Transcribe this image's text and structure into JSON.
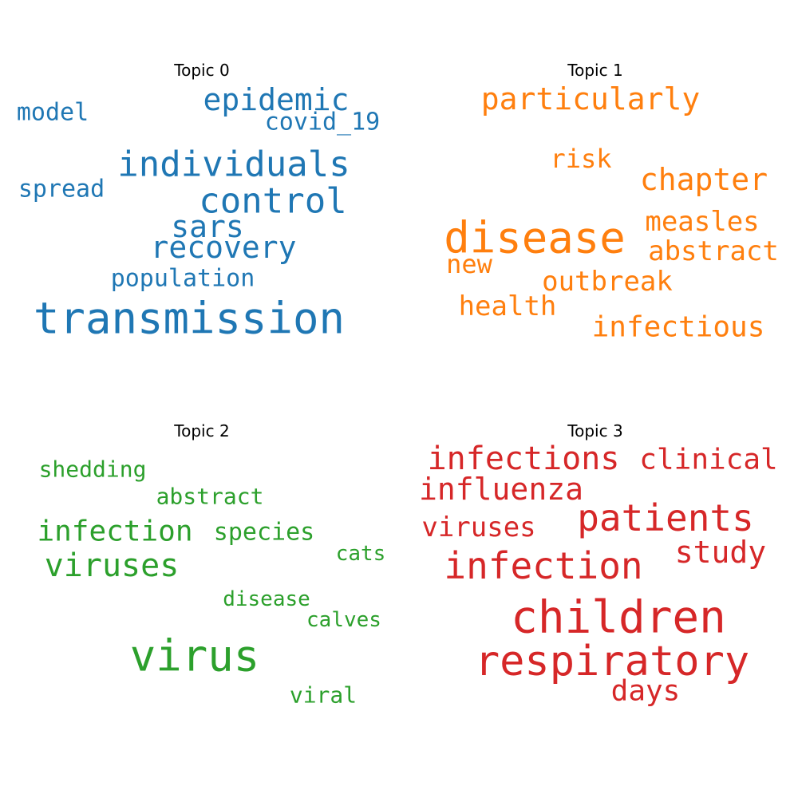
{
  "chart_data": [
    {
      "type": "wordcloud",
      "title": "Topic 0",
      "color": "#1f77b4",
      "words": [
        {
          "text": "transmission",
          "weight": 1.0
        },
        {
          "text": "individuals",
          "weight": 0.62
        },
        {
          "text": "control",
          "weight": 0.62
        },
        {
          "text": "epidemic",
          "weight": 0.55
        },
        {
          "text": "sars",
          "weight": 0.55
        },
        {
          "text": "recovery",
          "weight": 0.55
        },
        {
          "text": "covid_19",
          "weight": 0.42
        },
        {
          "text": "model",
          "weight": 0.42
        },
        {
          "text": "spread",
          "weight": 0.4
        },
        {
          "text": "population",
          "weight": 0.4
        }
      ]
    },
    {
      "type": "wordcloud",
      "title": "Topic 1",
      "color": "#ff7f0e",
      "words": [
        {
          "text": "disease",
          "weight": 1.0
        },
        {
          "text": "particularly",
          "weight": 0.62
        },
        {
          "text": "chapter",
          "weight": 0.55
        },
        {
          "text": "infectious",
          "weight": 0.55
        },
        {
          "text": "measles",
          "weight": 0.5
        },
        {
          "text": "outbreak",
          "weight": 0.5
        },
        {
          "text": "health",
          "weight": 0.5
        },
        {
          "text": "abstract",
          "weight": 0.5
        },
        {
          "text": "risk",
          "weight": 0.48
        },
        {
          "text": "new",
          "weight": 0.48
        }
      ]
    },
    {
      "type": "wordcloud",
      "title": "Topic 2",
      "color": "#2ca02c",
      "words": [
        {
          "text": "virus",
          "weight": 1.0
        },
        {
          "text": "viruses",
          "weight": 0.72
        },
        {
          "text": "infection",
          "weight": 0.62
        },
        {
          "text": "species",
          "weight": 0.5
        },
        {
          "text": "shedding",
          "weight": 0.48
        },
        {
          "text": "abstract",
          "weight": 0.46
        },
        {
          "text": "viral",
          "weight": 0.46
        },
        {
          "text": "cats",
          "weight": 0.42
        },
        {
          "text": "disease",
          "weight": 0.42
        },
        {
          "text": "calves",
          "weight": 0.42
        }
      ]
    },
    {
      "type": "wordcloud",
      "title": "Topic 3",
      "color": "#d62728",
      "words": [
        {
          "text": "children",
          "weight": 1.0
        },
        {
          "text": "respiratory",
          "weight": 0.92
        },
        {
          "text": "infection",
          "weight": 0.82
        },
        {
          "text": "patients",
          "weight": 0.82
        },
        {
          "text": "infections",
          "weight": 0.7
        },
        {
          "text": "influenza",
          "weight": 0.68
        },
        {
          "text": "study",
          "weight": 0.66
        },
        {
          "text": "clinical",
          "weight": 0.64
        },
        {
          "text": "days",
          "weight": 0.62
        },
        {
          "text": "viruses",
          "weight": 0.62
        }
      ]
    }
  ]
}
